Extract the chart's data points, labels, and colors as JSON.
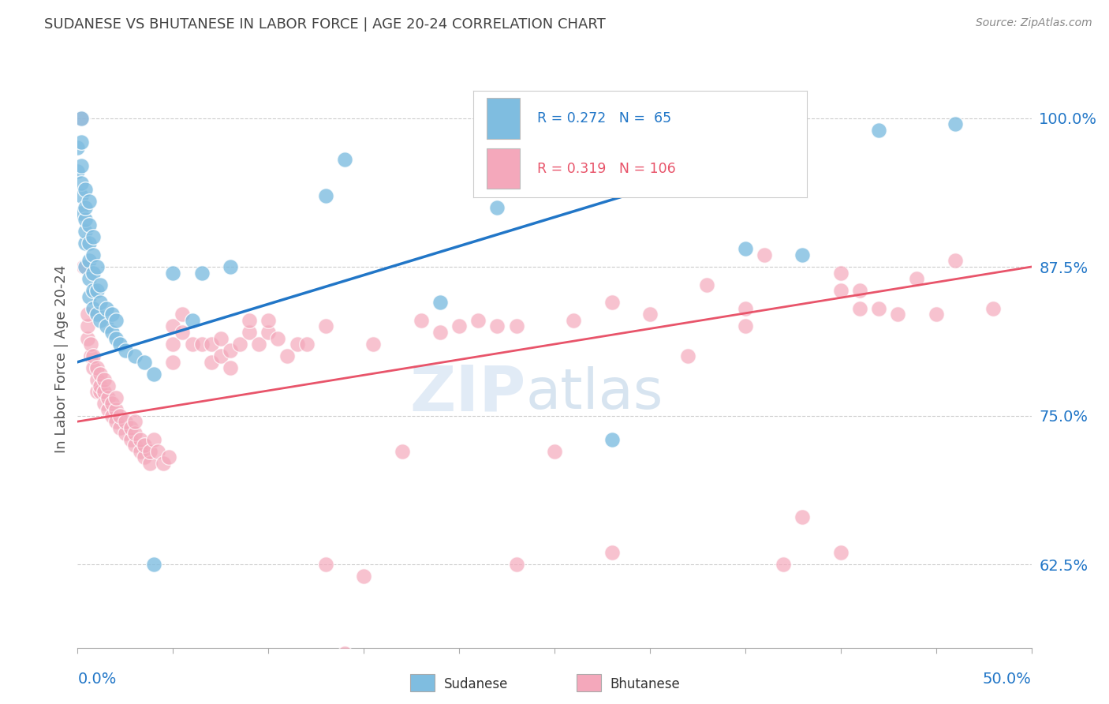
{
  "title": "SUDANESE VS BHUTANESE IN LABOR FORCE | AGE 20-24 CORRELATION CHART",
  "source": "Source: ZipAtlas.com",
  "ylabel": "In Labor Force | Age 20-24",
  "ytick_labels": [
    "62.5%",
    "75.0%",
    "87.5%",
    "100.0%"
  ],
  "ytick_values": [
    0.625,
    0.75,
    0.875,
    1.0
  ],
  "xlim": [
    0.0,
    0.5
  ],
  "ylim": [
    0.555,
    1.04
  ],
  "blue_color": "#7fbde0",
  "pink_color": "#f4a8bb",
  "blue_line_color": "#2176c7",
  "pink_line_color": "#e8546a",
  "blue_scatter": [
    [
      0.0,
      0.955
    ],
    [
      0.0,
      0.975
    ],
    [
      0.002,
      0.92
    ],
    [
      0.002,
      0.935
    ],
    [
      0.002,
      0.945
    ],
    [
      0.002,
      0.96
    ],
    [
      0.002,
      0.98
    ],
    [
      0.002,
      1.0
    ],
    [
      0.004,
      0.875
    ],
    [
      0.004,
      0.895
    ],
    [
      0.004,
      0.905
    ],
    [
      0.004,
      0.915
    ],
    [
      0.004,
      0.925
    ],
    [
      0.004,
      0.94
    ],
    [
      0.006,
      0.85
    ],
    [
      0.006,
      0.865
    ],
    [
      0.006,
      0.88
    ],
    [
      0.006,
      0.895
    ],
    [
      0.006,
      0.91
    ],
    [
      0.006,
      0.93
    ],
    [
      0.008,
      0.84
    ],
    [
      0.008,
      0.855
    ],
    [
      0.008,
      0.87
    ],
    [
      0.008,
      0.885
    ],
    [
      0.008,
      0.9
    ],
    [
      0.01,
      0.835
    ],
    [
      0.01,
      0.855
    ],
    [
      0.01,
      0.875
    ],
    [
      0.012,
      0.83
    ],
    [
      0.012,
      0.845
    ],
    [
      0.012,
      0.86
    ],
    [
      0.015,
      0.825
    ],
    [
      0.015,
      0.84
    ],
    [
      0.018,
      0.82
    ],
    [
      0.018,
      0.835
    ],
    [
      0.02,
      0.815
    ],
    [
      0.02,
      0.83
    ],
    [
      0.022,
      0.81
    ],
    [
      0.025,
      0.805
    ],
    [
      0.03,
      0.8
    ],
    [
      0.035,
      0.795
    ],
    [
      0.04,
      0.785
    ],
    [
      0.05,
      0.87
    ],
    [
      0.06,
      0.83
    ],
    [
      0.065,
      0.87
    ],
    [
      0.08,
      0.875
    ],
    [
      0.13,
      0.935
    ],
    [
      0.14,
      0.965
    ],
    [
      0.19,
      0.845
    ],
    [
      0.22,
      0.925
    ],
    [
      0.28,
      0.73
    ],
    [
      0.35,
      0.89
    ],
    [
      0.38,
      0.885
    ],
    [
      0.42,
      0.99
    ],
    [
      0.46,
      0.995
    ],
    [
      0.04,
      0.625
    ]
  ],
  "pink_scatter": [
    [
      0.002,
      1.0
    ],
    [
      0.003,
      0.875
    ],
    [
      0.005,
      0.815
    ],
    [
      0.005,
      0.825
    ],
    [
      0.005,
      0.835
    ],
    [
      0.007,
      0.8
    ],
    [
      0.007,
      0.81
    ],
    [
      0.008,
      0.79
    ],
    [
      0.008,
      0.8
    ],
    [
      0.01,
      0.77
    ],
    [
      0.01,
      0.78
    ],
    [
      0.01,
      0.79
    ],
    [
      0.012,
      0.77
    ],
    [
      0.012,
      0.775
    ],
    [
      0.012,
      0.785
    ],
    [
      0.014,
      0.76
    ],
    [
      0.014,
      0.77
    ],
    [
      0.014,
      0.78
    ],
    [
      0.016,
      0.755
    ],
    [
      0.016,
      0.765
    ],
    [
      0.016,
      0.775
    ],
    [
      0.018,
      0.75
    ],
    [
      0.018,
      0.76
    ],
    [
      0.02,
      0.745
    ],
    [
      0.02,
      0.755
    ],
    [
      0.02,
      0.765
    ],
    [
      0.022,
      0.74
    ],
    [
      0.022,
      0.75
    ],
    [
      0.025,
      0.735
    ],
    [
      0.025,
      0.745
    ],
    [
      0.028,
      0.73
    ],
    [
      0.028,
      0.74
    ],
    [
      0.03,
      0.725
    ],
    [
      0.03,
      0.735
    ],
    [
      0.03,
      0.745
    ],
    [
      0.033,
      0.72
    ],
    [
      0.033,
      0.73
    ],
    [
      0.035,
      0.715
    ],
    [
      0.035,
      0.725
    ],
    [
      0.038,
      0.71
    ],
    [
      0.038,
      0.72
    ],
    [
      0.04,
      0.73
    ],
    [
      0.042,
      0.72
    ],
    [
      0.045,
      0.71
    ],
    [
      0.048,
      0.715
    ],
    [
      0.05,
      0.795
    ],
    [
      0.05,
      0.81
    ],
    [
      0.05,
      0.825
    ],
    [
      0.055,
      0.82
    ],
    [
      0.055,
      0.835
    ],
    [
      0.06,
      0.81
    ],
    [
      0.065,
      0.81
    ],
    [
      0.07,
      0.795
    ],
    [
      0.07,
      0.81
    ],
    [
      0.075,
      0.8
    ],
    [
      0.075,
      0.815
    ],
    [
      0.08,
      0.79
    ],
    [
      0.08,
      0.805
    ],
    [
      0.085,
      0.81
    ],
    [
      0.09,
      0.82
    ],
    [
      0.09,
      0.83
    ],
    [
      0.095,
      0.81
    ],
    [
      0.1,
      0.82
    ],
    [
      0.1,
      0.83
    ],
    [
      0.105,
      0.815
    ],
    [
      0.11,
      0.8
    ],
    [
      0.115,
      0.81
    ],
    [
      0.12,
      0.81
    ],
    [
      0.13,
      0.625
    ],
    [
      0.13,
      0.825
    ],
    [
      0.14,
      0.55
    ],
    [
      0.15,
      0.615
    ],
    [
      0.155,
      0.81
    ],
    [
      0.17,
      0.72
    ],
    [
      0.18,
      0.83
    ],
    [
      0.19,
      0.82
    ],
    [
      0.2,
      0.825
    ],
    [
      0.21,
      0.83
    ],
    [
      0.22,
      0.825
    ],
    [
      0.23,
      0.625
    ],
    [
      0.23,
      0.825
    ],
    [
      0.25,
      0.72
    ],
    [
      0.26,
      0.83
    ],
    [
      0.28,
      0.635
    ],
    [
      0.28,
      0.845
    ],
    [
      0.3,
      0.835
    ],
    [
      0.32,
      0.8
    ],
    [
      0.33,
      0.86
    ],
    [
      0.35,
      0.825
    ],
    [
      0.35,
      0.84
    ],
    [
      0.36,
      0.885
    ],
    [
      0.37,
      0.625
    ],
    [
      0.38,
      0.665
    ],
    [
      0.4,
      0.855
    ],
    [
      0.4,
      0.87
    ],
    [
      0.41,
      0.84
    ],
    [
      0.41,
      0.855
    ],
    [
      0.42,
      0.84
    ],
    [
      0.43,
      0.835
    ],
    [
      0.44,
      0.865
    ],
    [
      0.45,
      0.835
    ],
    [
      0.46,
      0.88
    ],
    [
      0.48,
      0.84
    ],
    [
      0.4,
      0.635
    ]
  ],
  "blue_trend_x": [
    0.0,
    0.38
  ],
  "blue_trend_y": [
    0.795,
    0.98
  ],
  "pink_trend_x": [
    0.0,
    0.5
  ],
  "pink_trend_y": [
    0.745,
    0.875
  ],
  "watermark_zip": "ZIP",
  "watermark_atlas": "atlas",
  "title_color": "#444444",
  "tick_label_color": "#2176c7",
  "grid_color": "#cccccc",
  "background_color": "#ffffff"
}
